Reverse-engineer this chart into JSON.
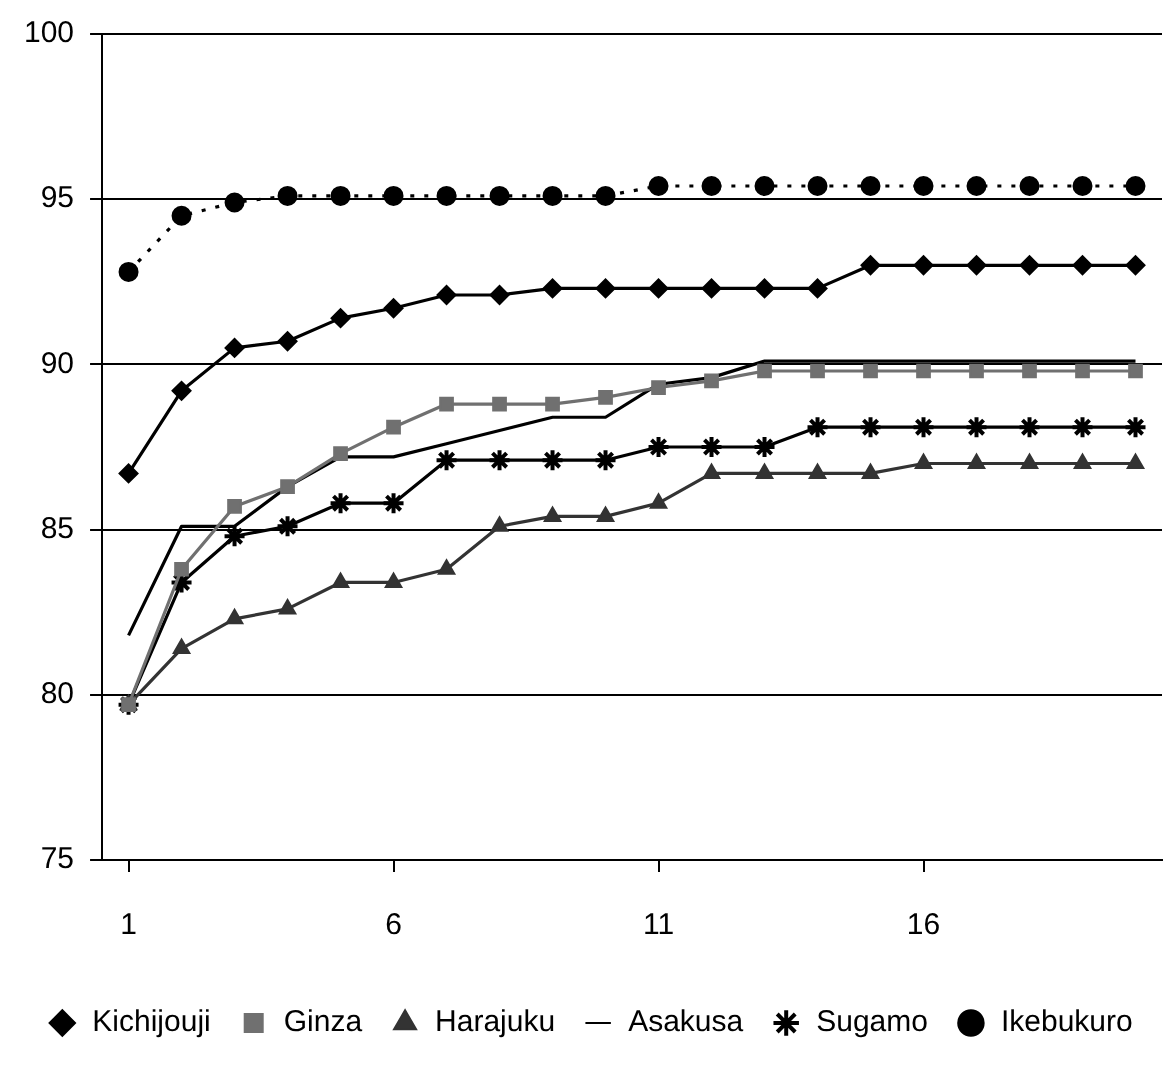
{
  "chart_data": {
    "type": "line",
    "x": [
      1,
      2,
      3,
      4,
      5,
      6,
      7,
      8,
      9,
      10,
      11,
      12,
      13,
      14,
      15,
      16,
      17,
      18,
      19,
      20
    ],
    "xlim": [
      0.5,
      20.5
    ],
    "xticks": [
      1,
      6,
      11,
      16
    ],
    "ylim": [
      75,
      100
    ],
    "yticks": [
      75,
      80,
      85,
      90,
      95,
      100
    ],
    "grid": "y",
    "legend": "bottom",
    "series": [
      {
        "name": "Kichijouji",
        "color": "#000000",
        "marker": "diamond",
        "line_style": "solid",
        "values": [
          86.7,
          89.2,
          90.5,
          90.7,
          91.4,
          91.7,
          92.1,
          92.1,
          92.3,
          92.3,
          92.3,
          92.3,
          92.3,
          92.3,
          93.0,
          93.0,
          93.0,
          93.0,
          93.0,
          93.0
        ]
      },
      {
        "name": "Ginza",
        "color": "#707070",
        "marker": "square",
        "line_style": "solid",
        "values": [
          79.7,
          83.8,
          85.7,
          86.3,
          87.3,
          88.1,
          88.8,
          88.8,
          88.8,
          89.0,
          89.3,
          89.5,
          89.8,
          89.8,
          89.8,
          89.8,
          89.8,
          89.8,
          89.8,
          89.8
        ]
      },
      {
        "name": "Harajuku",
        "color": "#333333",
        "marker": "triangle",
        "line_style": "solid",
        "values": [
          79.7,
          81.4,
          82.3,
          82.6,
          83.4,
          83.4,
          83.8,
          85.1,
          85.4,
          85.4,
          85.8,
          86.7,
          86.7,
          86.7,
          86.7,
          87.0,
          87.0,
          87.0,
          87.0,
          87.0
        ]
      },
      {
        "name": "Asakusa",
        "color": "#000000",
        "marker": "none",
        "line_style": "solid",
        "values": [
          81.8,
          85.1,
          85.1,
          86.3,
          87.2,
          87.2,
          87.6,
          88.0,
          88.4,
          88.4,
          89.4,
          89.6,
          90.1,
          90.1,
          90.1,
          90.1,
          90.1,
          90.1,
          90.1,
          90.1
        ]
      },
      {
        "name": "Sugamo",
        "color": "#000000",
        "marker": "cross",
        "line_style": "solid",
        "values": [
          79.7,
          83.4,
          84.8,
          85.1,
          85.8,
          85.8,
          87.1,
          87.1,
          87.1,
          87.1,
          87.5,
          87.5,
          87.5,
          88.1,
          88.1,
          88.1,
          88.1,
          88.1,
          88.1,
          88.1
        ]
      },
      {
        "name": "Ikebukuro",
        "color": "#000000",
        "marker": "circle",
        "line_style": "dotted",
        "values": [
          92.8,
          94.5,
          94.9,
          95.1,
          95.1,
          95.1,
          95.1,
          95.1,
          95.1,
          95.1,
          95.4,
          95.4,
          95.4,
          95.4,
          95.4,
          95.4,
          95.4,
          95.4,
          95.4,
          95.4
        ]
      }
    ]
  }
}
